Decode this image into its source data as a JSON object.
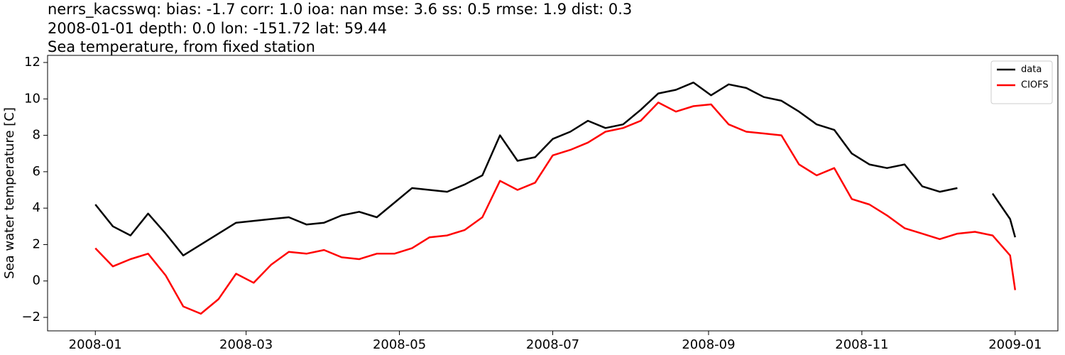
{
  "chart_data": {
    "type": "line",
    "title": [
      "nerrs_kacsswq: bias: -1.7  corr: 1.0  ioa: nan  mse: 3.6  ss: 0.5  rmse: 1.9  dist: 0.3",
      "2008-01-01 depth: 0.0 lon: -151.72 lat: 59.44",
      "Sea temperature, from fixed station"
    ],
    "y_label": "Sea water temperature [C]",
    "x": [
      "2008-01-01",
      "2008-01-08",
      "2008-01-15",
      "2008-01-22",
      "2008-01-29",
      "2008-02-05",
      "2008-02-12",
      "2008-02-19",
      "2008-02-26",
      "2008-03-04",
      "2008-03-11",
      "2008-03-18",
      "2008-03-25",
      "2008-04-01",
      "2008-04-08",
      "2008-04-15",
      "2008-04-22",
      "2008-04-29",
      "2008-05-06",
      "2008-05-13",
      "2008-05-20",
      "2008-05-27",
      "2008-06-03",
      "2008-06-10",
      "2008-06-17",
      "2008-06-24",
      "2008-07-01",
      "2008-07-08",
      "2008-07-15",
      "2008-07-22",
      "2008-07-29",
      "2008-08-05",
      "2008-08-12",
      "2008-08-19",
      "2008-08-26",
      "2008-09-02",
      "2008-09-09",
      "2008-09-16",
      "2008-09-23",
      "2008-09-30",
      "2008-10-07",
      "2008-10-14",
      "2008-10-21",
      "2008-10-28",
      "2008-11-04",
      "2008-11-11",
      "2008-11-18",
      "2008-11-25",
      "2008-12-02",
      "2008-12-09",
      "2008-12-16",
      "2008-12-23",
      "2008-12-30",
      "2009-01-01"
    ],
    "series": [
      {
        "name": "data",
        "color": "#000000",
        "values": [
          4.2,
          3.0,
          2.5,
          3.7,
          2.6,
          1.4,
          2.0,
          2.6,
          3.2,
          3.3,
          3.4,
          3.5,
          3.1,
          3.2,
          3.6,
          3.8,
          3.5,
          4.3,
          5.1,
          5.0,
          4.9,
          5.3,
          5.8,
          8.0,
          6.6,
          6.8,
          7.8,
          8.2,
          8.8,
          8.4,
          8.6,
          9.4,
          10.3,
          10.5,
          10.9,
          10.2,
          10.8,
          10.6,
          10.1,
          9.9,
          9.3,
          8.6,
          8.3,
          7.0,
          6.4,
          6.2,
          6.4,
          5.2,
          4.9,
          5.1,
          null,
          4.8,
          3.4,
          2.4
        ]
      },
      {
        "name": "CIOFS",
        "color": "#ff0000",
        "values": [
          1.8,
          0.8,
          1.2,
          1.5,
          0.3,
          -1.4,
          -1.8,
          -1.0,
          0.4,
          -0.1,
          0.9,
          1.6,
          1.5,
          1.7,
          1.3,
          1.2,
          1.5,
          1.5,
          1.8,
          2.4,
          2.5,
          2.8,
          3.5,
          5.5,
          5.0,
          5.4,
          6.9,
          7.2,
          7.6,
          8.2,
          8.4,
          8.8,
          9.8,
          9.3,
          9.6,
          9.7,
          8.6,
          8.2,
          8.1,
          8.0,
          6.4,
          5.8,
          6.2,
          4.5,
          4.2,
          3.6,
          2.9,
          2.6,
          2.3,
          2.6,
          2.7,
          2.5,
          1.4,
          -0.5
        ]
      }
    ],
    "xlim": [
      "2007-12-13",
      "2009-01-18"
    ],
    "xticks": [
      {
        "value": "2008-01-01",
        "label": "2008-01"
      },
      {
        "value": "2008-03-01",
        "label": "2008-03"
      },
      {
        "value": "2008-05-01",
        "label": "2008-05"
      },
      {
        "value": "2008-07-01",
        "label": "2008-07"
      },
      {
        "value": "2008-09-01",
        "label": "2008-09"
      },
      {
        "value": "2008-11-01",
        "label": "2008-11"
      },
      {
        "value": "2009-01-01",
        "label": "2009-01"
      }
    ],
    "ylim": [
      -2.74,
      12.39
    ],
    "yticks": [
      {
        "value": -2,
        "label": "−2"
      },
      0,
      2,
      4,
      6,
      8,
      10,
      12
    ],
    "legend": "upper right"
  }
}
